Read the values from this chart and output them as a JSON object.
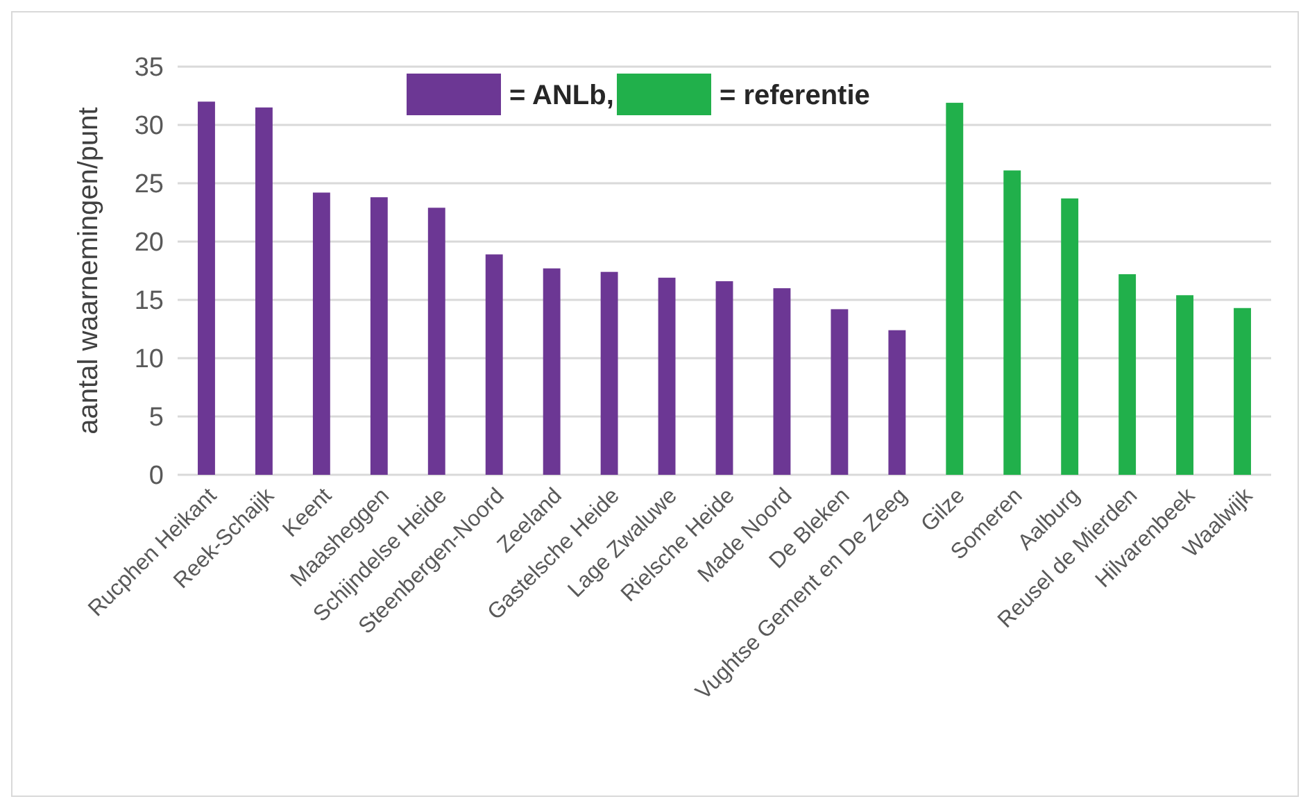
{
  "chart_data": {
    "type": "bar",
    "ylabel": "aantal waarnemingen/punt",
    "categories": [
      "Rucphen Heikant",
      "Reek-Schaijk",
      "Keent",
      "Maasheggen",
      "Schijndelse Heide",
      "Steenbergen-Noord",
      "Zeeland",
      "Gastelsche Heide",
      "Lage Zwaluwe",
      "Rielsche Heide",
      "Made Noord",
      "De Bleken",
      "Vughtse Gement en De Zeeg",
      "Gilze",
      "Someren",
      "Aalburg",
      "Reusel de Mierden",
      "Hilvarenbeek",
      "Waalwijk"
    ],
    "series": [
      {
        "name": "= ANLb,",
        "color": "#6c3794",
        "values": [
          32.0,
          31.5,
          24.2,
          23.8,
          22.9,
          18.9,
          17.7,
          17.4,
          16.9,
          16.6,
          16.0,
          14.2,
          12.4,
          null,
          null,
          null,
          null,
          null,
          null
        ]
      },
      {
        "name": "= referentie",
        "color": "#21b04b",
        "values": [
          null,
          null,
          null,
          null,
          null,
          null,
          null,
          null,
          null,
          null,
          null,
          null,
          null,
          31.9,
          26.1,
          23.7,
          17.2,
          15.4,
          14.3
        ]
      }
    ],
    "ylim": [
      0,
      35
    ],
    "yticks": [
      0,
      5,
      10,
      15,
      20,
      25,
      30,
      35
    ],
    "grid": "y",
    "legend": "top"
  }
}
